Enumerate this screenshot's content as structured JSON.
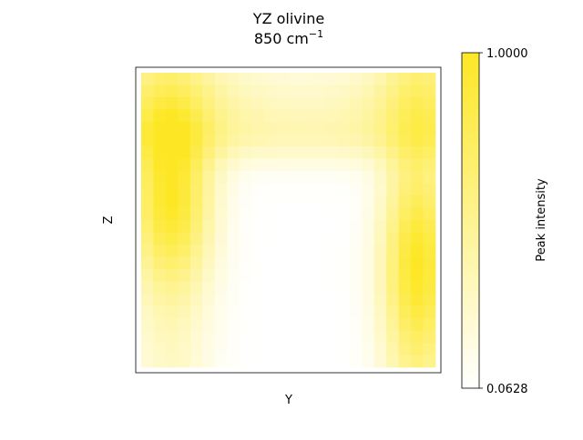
{
  "chart_data": {
    "type": "heatmap",
    "title": "YZ olivine",
    "subtitle": "850 cm",
    "subtitle_superscript": "−1",
    "xlabel": "Y",
    "ylabel": "Z",
    "colorbar": {
      "label": "Peak intensity",
      "min": 0.0628,
      "max": 1.0,
      "min_label": "0.0628",
      "max_label": "1.0000",
      "color_low": "#ffffff",
      "color_high": "#fde725"
    },
    "grid": false,
    "rows": 24,
    "cols": 24
  }
}
